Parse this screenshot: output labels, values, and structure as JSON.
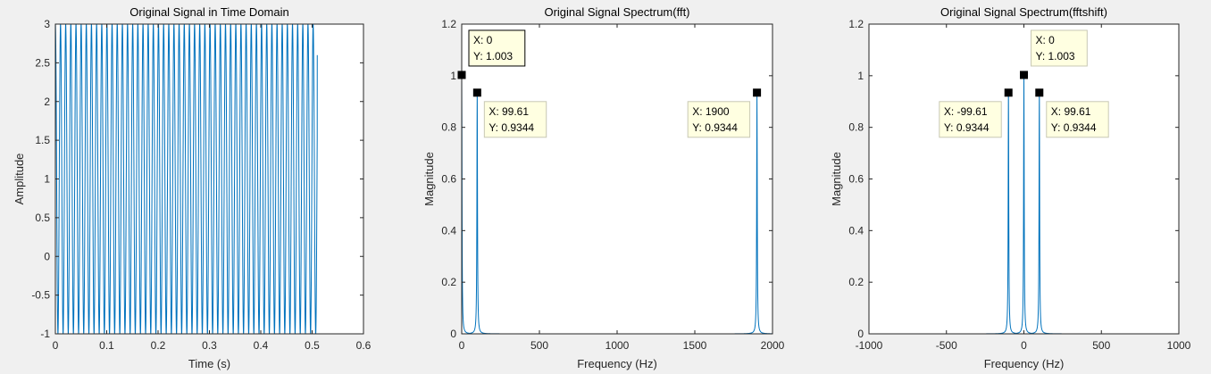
{
  "figure": {
    "background": "#f0f0f0",
    "line_color": "#0072bd",
    "axes_color": "#262626"
  },
  "chart_data": [
    {
      "type": "line",
      "title": "Original Signal in Time Domain",
      "xlabel": "Time (s)",
      "ylabel": "Amplitude",
      "xlim": [
        0,
        0.6
      ],
      "ylim": [
        -1,
        3
      ],
      "xticks": [
        0,
        0.1,
        0.2,
        0.3,
        0.4,
        0.5,
        0.6
      ],
      "xtick_labels": [
        "0",
        "0.1",
        "0.2",
        "0.3",
        "0.4",
        "0.5",
        "0.6"
      ],
      "yticks": [
        -1,
        -0.5,
        0,
        0.5,
        1,
        1.5,
        2,
        2.5,
        3
      ],
      "ytick_labels": [
        "-1",
        "-0.5",
        "0",
        "0.5",
        "1",
        "1.5",
        "2",
        "2.5",
        "3"
      ],
      "series": [
        {
          "frequency_hz": 99.61,
          "offset": 1,
          "amplitude": 2,
          "t_start": 0,
          "t_end": 0.51,
          "end_value": 2.6,
          "values_clipped_to_ylim": true
        }
      ],
      "annotations": []
    },
    {
      "type": "line",
      "title": "Original Signal Spectrum(fft)",
      "xlabel": "Frequency (Hz)",
      "ylabel": "Magnitude",
      "xlim": [
        0,
        2000
      ],
      "ylim": [
        0,
        1.2
      ],
      "xticks": [
        0,
        500,
        1000,
        1500,
        2000
      ],
      "xtick_labels": [
        "0",
        "500",
        "1000",
        "1500",
        "2000"
      ],
      "yticks": [
        0,
        0.2,
        0.4,
        0.6,
        0.8,
        1,
        1.2
      ],
      "ytick_labels": [
        "0",
        "0.2",
        "0.4",
        "0.6",
        "0.8",
        "1",
        "1.2"
      ],
      "series": [
        {
          "peaks": [
            {
              "x": 0,
              "y": 1.003
            },
            {
              "x": 99.61,
              "y": 0.9344
            },
            {
              "x": 1900,
              "y": 0.9344
            }
          ]
        }
      ],
      "annotations": [
        {
          "x": 0,
          "y": 1.003,
          "line1": "X: 0",
          "line2": "Y: 1.003",
          "selected": true,
          "placement": "above-right"
        },
        {
          "x": 99.61,
          "y": 0.9344,
          "line1": "X: 99.61",
          "line2": "Y: 0.9344",
          "selected": false,
          "placement": "below-right"
        },
        {
          "x": 1900,
          "y": 0.9344,
          "line1": "X: 1900",
          "line2": "Y: 0.9344",
          "selected": false,
          "placement": "below-left"
        }
      ]
    },
    {
      "type": "line",
      "title": "Original Signal Spectrum(fftshift)",
      "xlabel": "Frequency (Hz)",
      "ylabel": "Magnitude",
      "xlim": [
        -1000,
        1000
      ],
      "ylim": [
        0,
        1.2
      ],
      "xticks": [
        -1000,
        -500,
        0,
        500,
        1000
      ],
      "xtick_labels": [
        "-1000",
        "-500",
        "0",
        "500",
        "1000"
      ],
      "yticks": [
        0,
        0.2,
        0.4,
        0.6,
        0.8,
        1,
        1.2
      ],
      "ytick_labels": [
        "0",
        "0.2",
        "0.4",
        "0.6",
        "0.8",
        "1",
        "1.2"
      ],
      "series": [
        {
          "peaks": [
            {
              "x": -99.61,
              "y": 0.9344
            },
            {
              "x": 0,
              "y": 1.003
            },
            {
              "x": 99.61,
              "y": 0.9344
            }
          ]
        }
      ],
      "annotations": [
        {
          "x": 0,
          "y": 1.003,
          "line1": "X: 0",
          "line2": "Y: 1.003",
          "selected": false,
          "placement": "above-right"
        },
        {
          "x": -99.61,
          "y": 0.9344,
          "line1": "X: -99.61",
          "line2": "Y: 0.9344",
          "selected": false,
          "placement": "below-left"
        },
        {
          "x": 99.61,
          "y": 0.9344,
          "line1": "X: 99.61",
          "line2": "Y: 0.9344",
          "selected": false,
          "placement": "below-right"
        }
      ]
    }
  ]
}
